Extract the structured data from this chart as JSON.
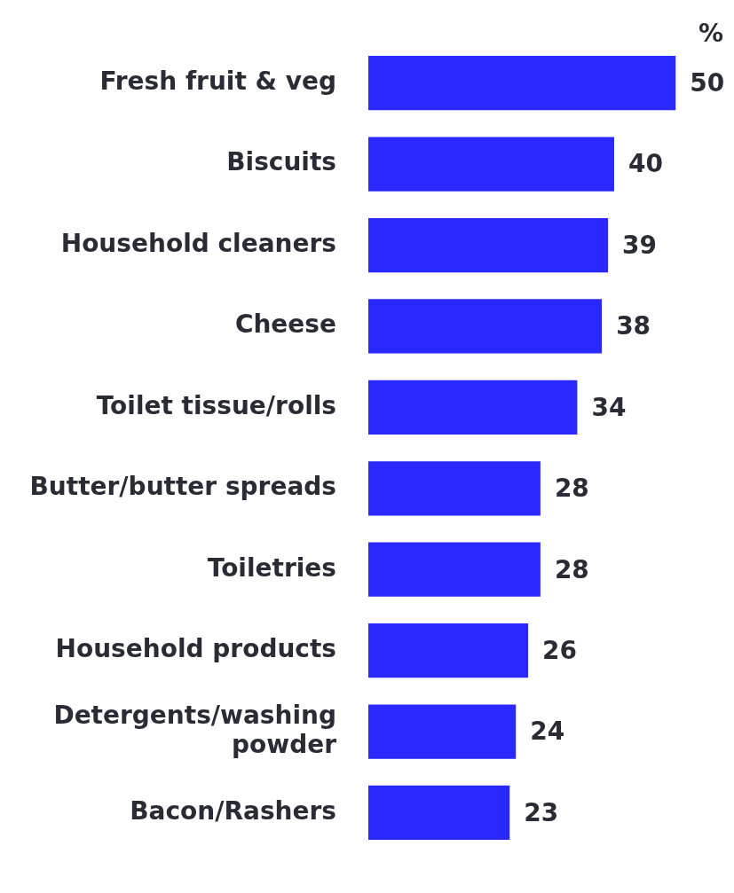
{
  "chart_data": {
    "type": "bar",
    "orientation": "horizontal",
    "categories": [
      "Fresh fruit & veg",
      "Biscuits",
      "Household cleaners",
      "Cheese",
      "Toilet tissue/rolls",
      "Butter/butter spreads",
      "Toiletries",
      "Household products",
      "Detergents/washing powder",
      "Bacon/Rashers"
    ],
    "values": [
      50,
      40,
      39,
      38,
      34,
      28,
      28,
      26,
      24,
      23
    ],
    "color": "#2828ff",
    "data_labels": true,
    "annotations": [
      "%"
    ]
  }
}
